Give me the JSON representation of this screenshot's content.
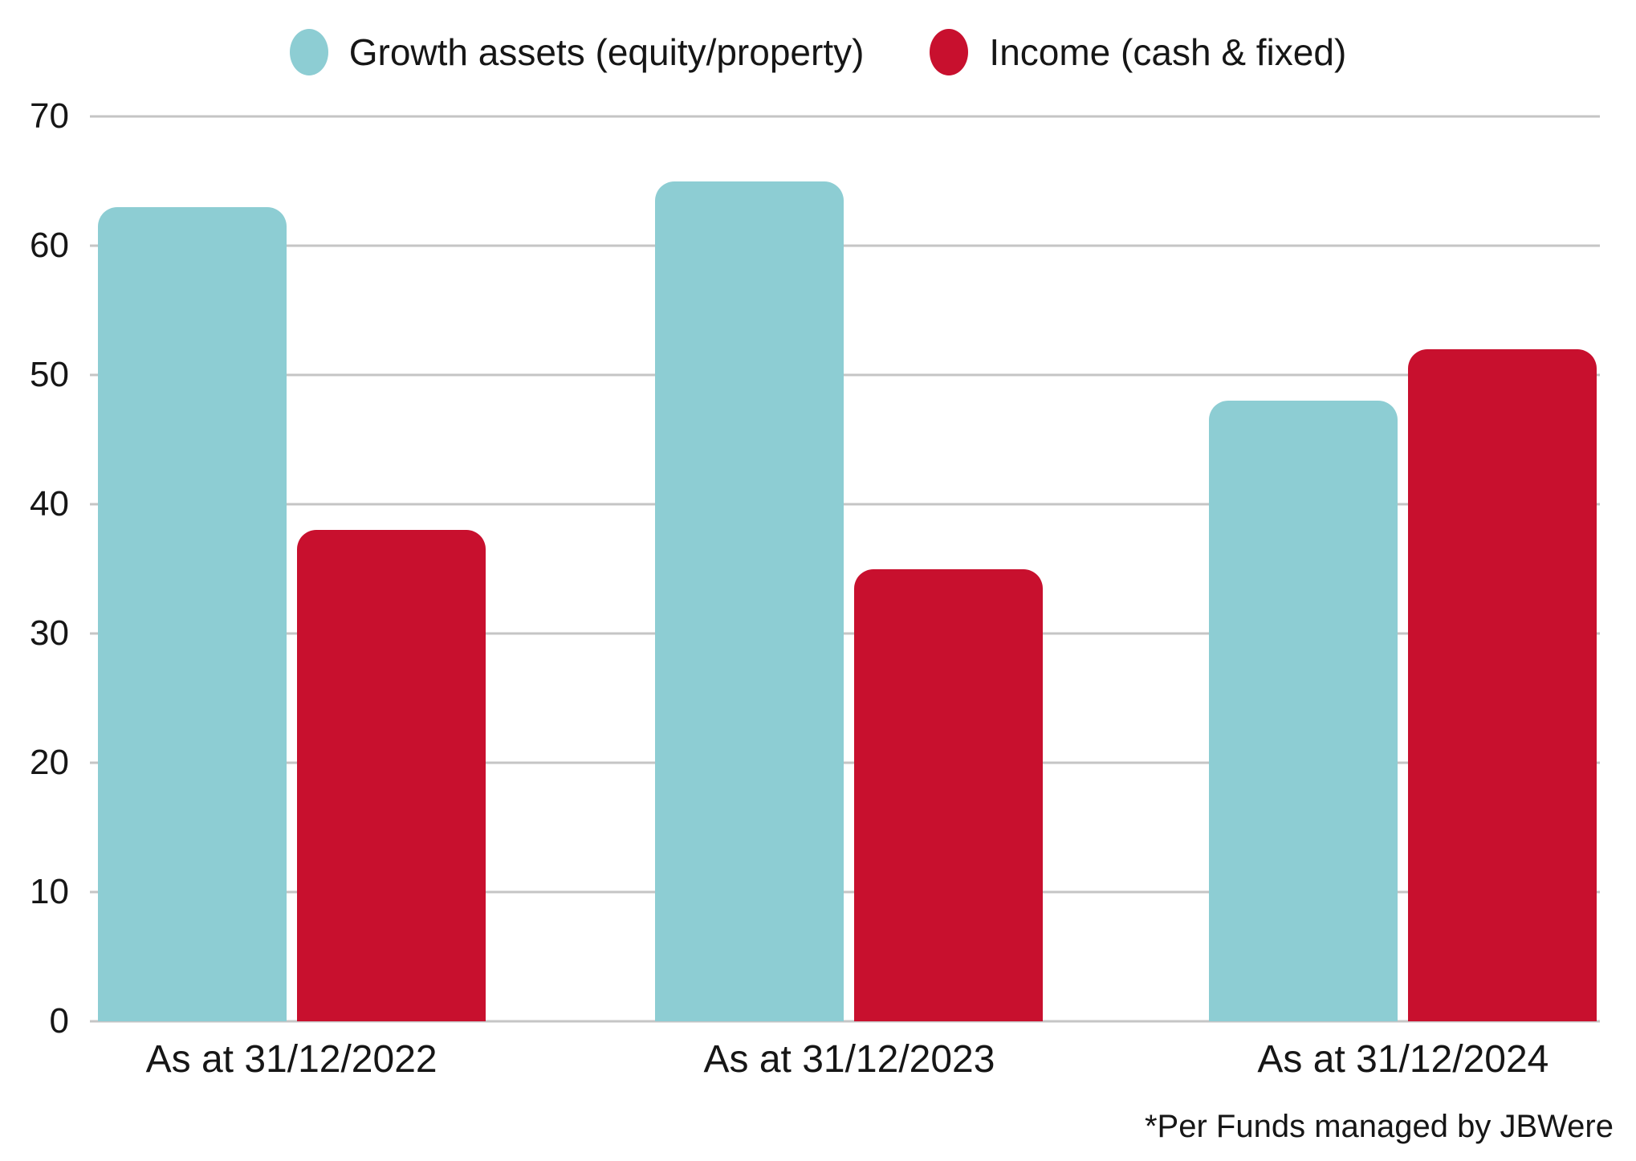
{
  "chart_data": {
    "type": "bar",
    "title": "",
    "categories": [
      "As at 31/12/2022",
      "As at 31/12/2023",
      "As at 31/12/2024"
    ],
    "series": [
      {
        "name": "Growth assets (equity/property)",
        "color": "#8DCDD3",
        "values": [
          63,
          65,
          48
        ]
      },
      {
        "name": "Income (cash & fixed)",
        "color": "#C8102E",
        "values": [
          38,
          35,
          52
        ]
      }
    ],
    "xlabel": "",
    "ylabel": "",
    "ylim": [
      0,
      70
    ],
    "yticks": [
      0,
      10,
      20,
      30,
      40,
      50,
      60,
      70
    ],
    "grid": "horizontal",
    "gridline_color": "#C5C5C5",
    "background_color": "#FFFFFF",
    "text_color": "#161616",
    "legend_position": "top-center",
    "legend_marker": "circle",
    "footnote": "*Per Funds managed by JBWere"
  }
}
